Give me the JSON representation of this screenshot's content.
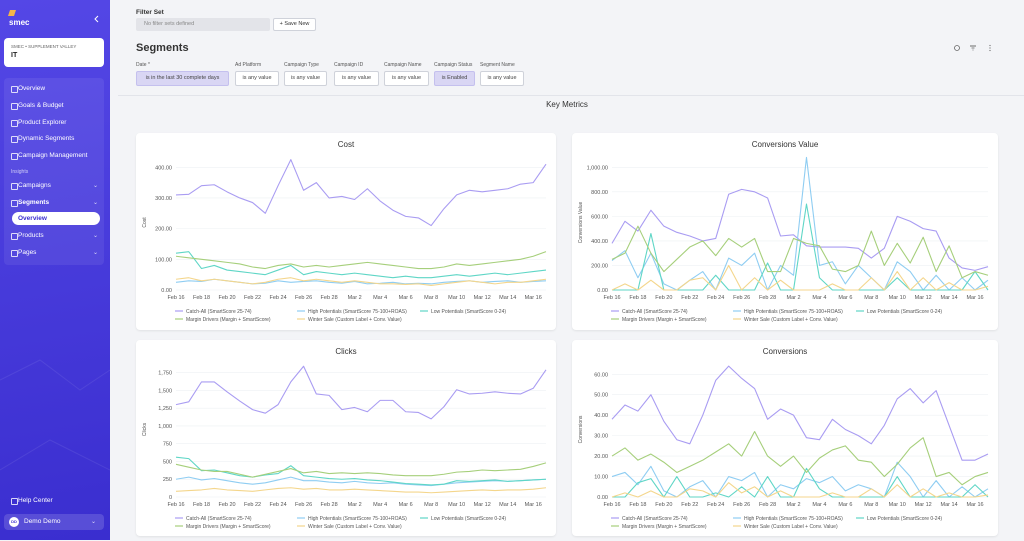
{
  "sidebar": {
    "logo": "smec",
    "account_label": "SMEC • SUPPLEMENT VALLEY",
    "account_name": "IT",
    "nav": [
      "Overview",
      "Goals & Budget",
      "Product Explorer",
      "Dynamic Segments",
      "Campaign Management"
    ],
    "section": "Insights",
    "insights": [
      "Campaigns",
      "Segments"
    ],
    "sub_item": "Overview",
    "more": [
      "Products",
      "Pages"
    ],
    "help": "Help Center",
    "user_initials": "DD",
    "user": "Demo Demo"
  },
  "header": {
    "filter_set_label": "Filter Set",
    "filter_set_placeholder": "No filter sets defined",
    "save_button": "+ Save New",
    "title": "Segments"
  },
  "filters": [
    {
      "label": "Date *",
      "value": "is in the last 30 complete days"
    },
    {
      "label": "Ad Platform",
      "value": "is any value"
    },
    {
      "label": "Campaign Type",
      "value": "is any value"
    },
    {
      "label": "Campaign ID",
      "value": "is any value"
    },
    {
      "label": "Campaign Name",
      "value": "is any value"
    },
    {
      "label": "Campaign Status",
      "value": "is Enabled"
    },
    {
      "label": "Segment Name",
      "value": "is any value"
    }
  ],
  "section_title": "Key Metrics",
  "chart_data": [
    {
      "type": "line",
      "title": "Cost",
      "y_label": "Cost",
      "grid": true,
      "categories": [
        "Feb 16",
        null,
        "Feb 18",
        null,
        "Feb 20",
        null,
        "Feb 22",
        null,
        "Feb 24",
        null,
        "Feb 26",
        null,
        "Feb 28",
        null,
        "Mar 2",
        null,
        "Mar 4",
        null,
        "Mar 6",
        null,
        "Mar 8",
        null,
        "Mar 10",
        null,
        "Mar 12",
        null,
        "Mar 14",
        null,
        "Mar 16",
        null
      ],
      "ylim": [
        0,
        440
      ],
      "yticks": [
        {
          "value": 0,
          "label": "0.00"
        },
        {
          "value": 100,
          "label": "100.00"
        },
        {
          "value": 200,
          "label": "200.00"
        },
        {
          "value": 300,
          "label": "300.00"
        },
        {
          "value": 400,
          "label": "400.00"
        }
      ],
      "series": [
        {
          "name": "Catch-All (SmartScore 25-74)",
          "color": "#a99cf2",
          "values": [
            310,
            312,
            340,
            343,
            320,
            300,
            285,
            250,
            340,
            425,
            325,
            350,
            300,
            305,
            295,
            330,
            290,
            260,
            240,
            235,
            210,
            265,
            310,
            325,
            320,
            325,
            330,
            345,
            350,
            410
          ]
        },
        {
          "name": "High Potentials (SmartScore 75-100+ROAS)",
          "color": "#8fcdf2",
          "values": [
            25,
            30,
            28,
            35,
            30,
            25,
            20,
            22,
            30,
            25,
            28,
            30,
            25,
            22,
            28,
            20,
            22,
            25,
            20,
            22,
            20,
            25,
            28,
            30,
            25,
            28,
            30,
            25,
            28,
            30
          ]
        },
        {
          "name": "Low Potentials (SmartScore 0-24)",
          "color": "#5fd6c6",
          "values": [
            120,
            125,
            70,
            80,
            65,
            60,
            55,
            50,
            65,
            80,
            50,
            60,
            55,
            50,
            55,
            50,
            45,
            40,
            45,
            40,
            40,
            45,
            50,
            45,
            50,
            55,
            50,
            55,
            60,
            65
          ]
        },
        {
          "name": "Margin Drivers (Margin + SmartScore)",
          "color": "#a6cf7b",
          "values": [
            110,
            105,
            100,
            95,
            90,
            85,
            75,
            70,
            80,
            85,
            75,
            80,
            75,
            80,
            85,
            90,
            85,
            80,
            75,
            70,
            70,
            75,
            85,
            80,
            85,
            90,
            95,
            100,
            110,
            125
          ]
        },
        {
          "name": "Winter Sale (Custom Label + Conv. Value)",
          "color": "#f4d68c",
          "values": [
            35,
            40,
            30,
            35,
            30,
            25,
            20,
            25,
            35,
            40,
            30,
            35,
            30,
            25,
            30,
            25,
            20,
            20,
            18,
            20,
            15,
            20,
            25,
            30,
            25,
            20,
            25,
            25,
            30,
            35
          ]
        }
      ]
    },
    {
      "type": "line",
      "title": "Conversions Value",
      "y_label": "Conversions Value",
      "grid": true,
      "categories": [
        "Feb 16",
        null,
        "Feb 18",
        null,
        "Feb 20",
        null,
        "Feb 22",
        null,
        "Feb 24",
        null,
        "Feb 26",
        null,
        "Feb 28",
        null,
        "Mar 2",
        null,
        "Mar 4",
        null,
        "Mar 6",
        null,
        "Mar 8",
        null,
        "Mar 10",
        null,
        "Mar 12",
        null,
        "Mar 14",
        null,
        "Mar 16",
        null
      ],
      "ylim": [
        0,
        1100
      ],
      "yticks": [
        {
          "value": 0,
          "label": "0.00"
        },
        {
          "value": 200,
          "label": "200.00"
        },
        {
          "value": 400,
          "label": "400.00"
        },
        {
          "value": 600,
          "label": "600.00"
        },
        {
          "value": 800,
          "label": "800.00"
        },
        {
          "value": 1000,
          "label": "1,000.00"
        }
      ],
      "series": [
        {
          "name": "Catch-All (SmartScore 25-74)",
          "color": "#a99cf2",
          "values": [
            380,
            560,
            480,
            650,
            520,
            470,
            440,
            400,
            420,
            780,
            820,
            800,
            750,
            440,
            450,
            360,
            350,
            350,
            350,
            340,
            260,
            340,
            600,
            560,
            500,
            480,
            260,
            180,
            160,
            190
          ]
        },
        {
          "name": "High Potentials (SmartScore 75-100+ROAS)",
          "color": "#8fcdf2",
          "values": [
            240,
            320,
            100,
            300,
            50,
            0,
            80,
            150,
            0,
            260,
            200,
            300,
            0,
            200,
            120,
            1080,
            200,
            230,
            50,
            200,
            100,
            0,
            230,
            150,
            0,
            120,
            0,
            100,
            0,
            80
          ]
        },
        {
          "name": "Low Potentials (SmartScore 0-24)",
          "color": "#5fd6c6",
          "values": [
            0,
            0,
            0,
            460,
            0,
            0,
            0,
            0,
            120,
            0,
            0,
            0,
            220,
            0,
            0,
            700,
            100,
            0,
            0,
            0,
            0,
            0,
            100,
            0,
            0,
            0,
            0,
            0,
            150,
            0
          ]
        },
        {
          "name": "Margin Drivers (Margin + SmartScore)",
          "color": "#a6cf7b",
          "values": [
            250,
            300,
            520,
            300,
            150,
            250,
            350,
            400,
            280,
            420,
            350,
            420,
            150,
            150,
            420,
            380,
            360,
            170,
            150,
            200,
            480,
            200,
            380,
            220,
            430,
            150,
            360,
            100,
            150,
            120
          ]
        },
        {
          "name": "Winter Sale (Custom Label + Conv. Value)",
          "color": "#f4d68c",
          "values": [
            0,
            50,
            0,
            80,
            0,
            0,
            80,
            100,
            0,
            200,
            0,
            100,
            0,
            80,
            0,
            0,
            0,
            50,
            0,
            0,
            100,
            0,
            150,
            0,
            100,
            0,
            60,
            0,
            0,
            30
          ]
        }
      ]
    },
    {
      "type": "line",
      "title": "Clicks",
      "y_label": "Clicks",
      "grid": true,
      "categories": [
        "Feb 16",
        null,
        "Feb 18",
        null,
        "Feb 20",
        null,
        "Feb 22",
        null,
        "Feb 24",
        null,
        "Feb 26",
        null,
        "Feb 28",
        null,
        "Mar 2",
        null,
        "Mar 4",
        null,
        "Mar 6",
        null,
        "Mar 8",
        null,
        "Mar 10",
        null,
        "Mar 12",
        null,
        "Mar 14",
        null,
        "Mar 16",
        null
      ],
      "ylim": [
        0,
        1900
      ],
      "yticks": [
        0,
        250,
        500,
        750,
        {
          "value": 1000,
          "label": "1,000"
        },
        {
          "value": 1250,
          "label": "1,250"
        },
        {
          "value": 1500,
          "label": "1,500"
        },
        {
          "value": 1750,
          "label": "1,750"
        }
      ],
      "series": [
        {
          "name": "Catch-All (SmartScore 25-74)",
          "color": "#a99cf2",
          "values": [
            1300,
            1340,
            1620,
            1620,
            1480,
            1350,
            1230,
            1180,
            1300,
            1620,
            1840,
            1450,
            1430,
            1230,
            1260,
            1200,
            1360,
            1360,
            1200,
            1190,
            1100,
            1270,
            1510,
            1450,
            1460,
            1480,
            1460,
            1450,
            1530,
            1790
          ]
        },
        {
          "name": "High Potentials (SmartScore 75-100+ROAS)",
          "color": "#8fcdf2",
          "values": [
            250,
            280,
            240,
            260,
            230,
            200,
            180,
            200,
            240,
            280,
            230,
            230,
            210,
            200,
            220,
            200,
            190,
            200,
            180,
            170,
            160,
            180,
            200,
            210,
            220,
            230,
            220,
            230,
            240,
            250
          ]
        },
        {
          "name": "Low Potentials (SmartScore 0-24)",
          "color": "#5fd6c6",
          "values": [
            560,
            540,
            370,
            380,
            340,
            300,
            280,
            310,
            330,
            440,
            300,
            280,
            260,
            250,
            260,
            240,
            230,
            210,
            190,
            180,
            170,
            180,
            230,
            220,
            230,
            240,
            220,
            230,
            240,
            250
          ]
        },
        {
          "name": "Margin Drivers (Margin + SmartScore)",
          "color": "#a6cf7b",
          "values": [
            460,
            420,
            380,
            360,
            360,
            320,
            280,
            320,
            360,
            400,
            340,
            360,
            330,
            340,
            330,
            340,
            330,
            310,
            300,
            300,
            300,
            320,
            350,
            360,
            380,
            370,
            380,
            390,
            430,
            480
          ]
        },
        {
          "name": "Winter Sale (Custom Label + Conv. Value)",
          "color": "#f4d68c",
          "values": [
            80,
            90,
            100,
            120,
            100,
            90,
            80,
            100,
            120,
            130,
            110,
            120,
            100,
            100,
            110,
            100,
            90,
            80,
            70,
            70,
            60,
            70,
            80,
            90,
            100,
            90,
            100,
            100,
            110,
            130
          ]
        }
      ]
    },
    {
      "type": "line",
      "title": "Conversions",
      "y_label": "Conversions",
      "grid": true,
      "categories": [
        "Feb 16",
        null,
        "Feb 18",
        null,
        "Feb 20",
        null,
        "Feb 22",
        null,
        "Feb 24",
        null,
        "Feb 26",
        null,
        "Feb 28",
        null,
        "Mar 2",
        null,
        "Mar 4",
        null,
        "Mar 6",
        null,
        "Mar 8",
        null,
        "Mar 10",
        null,
        "Mar 12",
        null,
        "Mar 14",
        null,
        "Mar 16",
        null
      ],
      "ylim": [
        0,
        66
      ],
      "yticks": [
        {
          "value": 0,
          "label": "0.00"
        },
        {
          "value": 10,
          "label": "10.00"
        },
        {
          "value": 20,
          "label": "20.00"
        },
        {
          "value": 30,
          "label": "30.00"
        },
        {
          "value": 40,
          "label": "40.00"
        },
        {
          "value": 50,
          "label": "50.00"
        },
        {
          "value": 60,
          "label": "60.00"
        }
      ],
      "series": [
        {
          "name": "Catch-All (SmartScore 25-74)",
          "color": "#a99cf2",
          "values": [
            38,
            45,
            42,
            50,
            37,
            28,
            26,
            40,
            57,
            64,
            58,
            53,
            38,
            43,
            40,
            29,
            28,
            38,
            33,
            30,
            26,
            35,
            48,
            53,
            46,
            52,
            35,
            18,
            18,
            21
          ]
        },
        {
          "name": "High Potentials (SmartScore 75-100+ROAS)",
          "color": "#8fcdf2",
          "values": [
            10,
            12,
            6,
            15,
            3,
            0,
            5,
            8,
            0,
            10,
            8,
            12,
            0,
            6,
            4,
            9,
            7,
            10,
            3,
            6,
            4,
            0,
            17,
            10,
            0,
            8,
            0,
            5,
            0,
            4
          ]
        },
        {
          "name": "Low Potentials (SmartScore 0-24)",
          "color": "#5fd6c6",
          "values": [
            0,
            0,
            7,
            9,
            0,
            10,
            0,
            0,
            2,
            0,
            5,
            0,
            10,
            0,
            0,
            14,
            4,
            0,
            0,
            0,
            0,
            0,
            10,
            0,
            0,
            0,
            0,
            0,
            6,
            0
          ]
        },
        {
          "name": "Margin Drivers (Margin + SmartScore)",
          "color": "#a6cf7b",
          "values": [
            20,
            24,
            18,
            21,
            17,
            12,
            15,
            18,
            22,
            26,
            20,
            32,
            20,
            15,
            20,
            12,
            19,
            23,
            25,
            18,
            17,
            10,
            16,
            24,
            29,
            10,
            12,
            6,
            10,
            12
          ]
        },
        {
          "name": "Winter Sale (Custom Label + Conv. Value)",
          "color": "#f4d68c",
          "values": [
            0,
            2,
            0,
            3,
            0,
            0,
            4,
            3,
            0,
            7,
            2,
            5,
            0,
            3,
            0,
            0,
            0,
            2,
            0,
            0,
            4,
            0,
            6,
            0,
            4,
            0,
            2,
            0,
            0,
            1
          ]
        }
      ]
    }
  ]
}
